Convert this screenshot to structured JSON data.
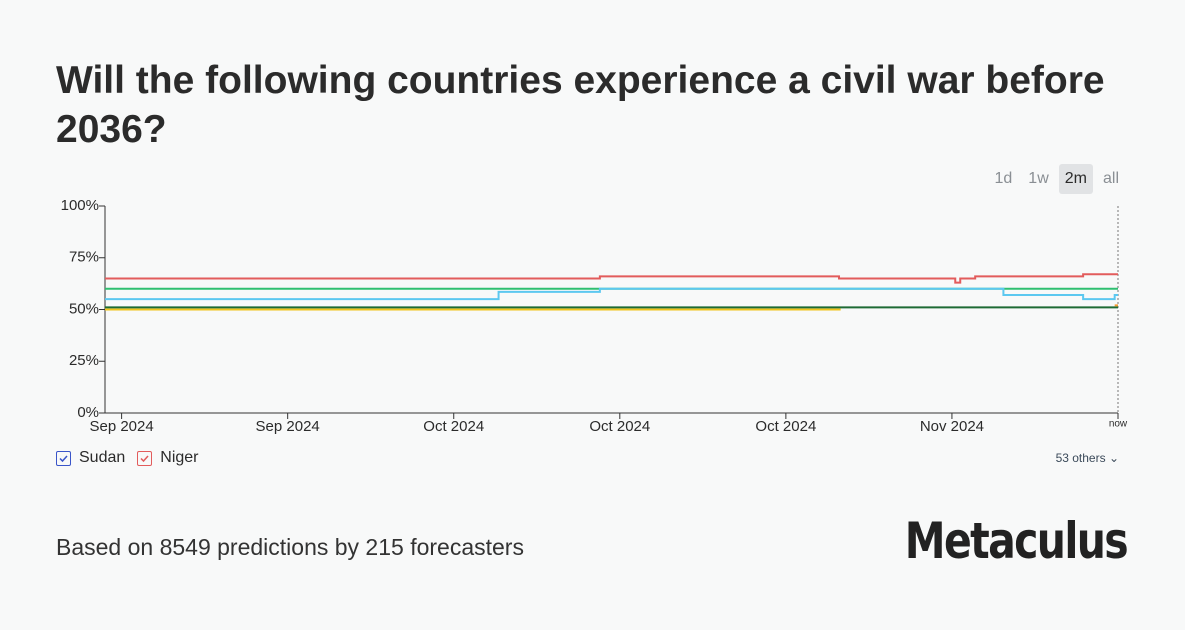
{
  "title": "Will the following countries experience a civil war before 2036?",
  "range_buttons": [
    "1d",
    "1w",
    "2m",
    "all"
  ],
  "active_range": "2m",
  "legend": [
    {
      "label": "Sudan",
      "color": "#3a55c9"
    },
    {
      "label": "Niger",
      "color": "#e25c5c"
    }
  ],
  "others": "53 others",
  "footer": "Based on 8549 predictions by 215 forecasters",
  "brand": "Metaculus",
  "chart_data": {
    "type": "step",
    "xlim": [
      0,
      61
    ],
    "xticks": [
      {
        "value": 1,
        "label": "Sep 2024"
      },
      {
        "value": 11,
        "label": "Sep 2024"
      },
      {
        "value": 21,
        "label": "Oct 2024"
      },
      {
        "value": 31,
        "label": "Oct 2024"
      },
      {
        "value": 41,
        "label": "Oct 2024"
      },
      {
        "value": 51,
        "label": "Nov 2024"
      },
      {
        "value": 61,
        "label": "now"
      }
    ],
    "ylim": [
      0,
      100
    ],
    "yticks": [
      {
        "value": 0,
        "label": "0%"
      },
      {
        "value": 25,
        "label": "25%"
      },
      {
        "value": 50,
        "label": "50%"
      },
      {
        "value": 75,
        "label": "75%"
      },
      {
        "value": 100,
        "label": "100%"
      }
    ],
    "series": [
      {
        "color": "#f0c419",
        "x": [
          0,
          44.3
        ],
        "values": [
          50,
          50
        ]
      },
      {
        "color": "#1e6b34",
        "x": [
          0,
          61
        ],
        "values": [
          51,
          51
        ]
      },
      {
        "color": "#2fbf71",
        "x": [
          0,
          61
        ],
        "values": [
          60,
          60
        ]
      },
      {
        "color": "#5cc8f0",
        "x": [
          0,
          23.7,
          29.8,
          54.1,
          58.9,
          60.8,
          61
        ],
        "values": [
          55,
          58.5,
          60,
          57,
          55,
          57,
          57
        ]
      },
      {
        "color": "#f39c33",
        "x": [
          60.8,
          61
        ],
        "values": [
          52,
          52
        ]
      },
      {
        "color": "#e25c5c",
        "x": [
          0,
          29.8,
          44.2,
          51.2,
          51.5,
          52.4,
          58.9,
          61
        ],
        "values": [
          65,
          66,
          65,
          63,
          65,
          66,
          67,
          67
        ]
      }
    ]
  }
}
